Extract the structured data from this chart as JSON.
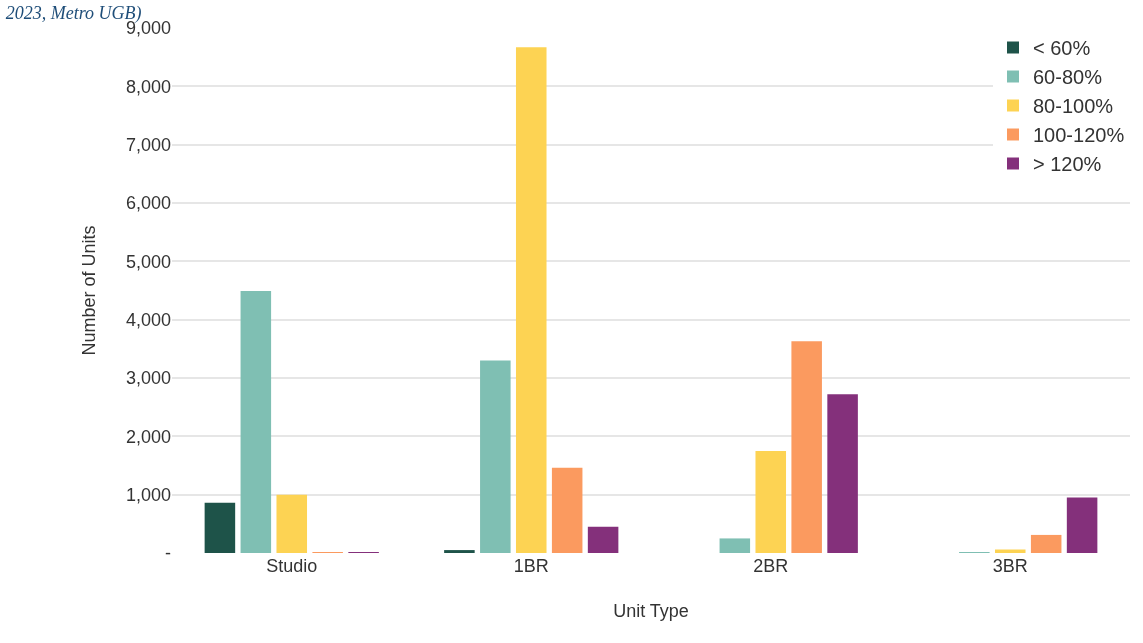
{
  "chart_data": {
    "type": "bar",
    "title": "2023, Metro UGB)",
    "xlabel": "Unit Type",
    "ylabel": "Number of Units",
    "categories": [
      "Studio",
      "1BR",
      "2BR",
      "3BR"
    ],
    "series": [
      {
        "name": "< 60%",
        "color": "#1e5349",
        "values": [
          860,
          50,
          0,
          0
        ]
      },
      {
        "name": "60-80%",
        "color": "#7fbfb3",
        "values": [
          4490,
          3300,
          250,
          10
        ]
      },
      {
        "name": "80-100%",
        "color": "#fdd353",
        "values": [
          1000,
          8670,
          1750,
          60
        ]
      },
      {
        "name": "100-120%",
        "color": "#fb9a5f",
        "values": [
          10,
          1460,
          3630,
          310
        ]
      },
      {
        "name": "> 120%",
        "color": "#84307b",
        "values": [
          10,
          450,
          2720,
          950
        ]
      }
    ],
    "ylim": [
      0,
      9000
    ],
    "yticks": [
      {
        "value": 0,
        "label": "-"
      },
      {
        "value": 1000,
        "label": "1,000"
      },
      {
        "value": 2000,
        "label": "2,000"
      },
      {
        "value": 3000,
        "label": "3,000"
      },
      {
        "value": 4000,
        "label": "4,000"
      },
      {
        "value": 5000,
        "label": "5,000"
      },
      {
        "value": 6000,
        "label": "6,000"
      },
      {
        "value": 7000,
        "label": "7,000"
      },
      {
        "value": 8000,
        "label": "8,000"
      },
      {
        "value": 9000,
        "label": "9,000"
      }
    ],
    "grid": "y",
    "legend": "top right"
  }
}
